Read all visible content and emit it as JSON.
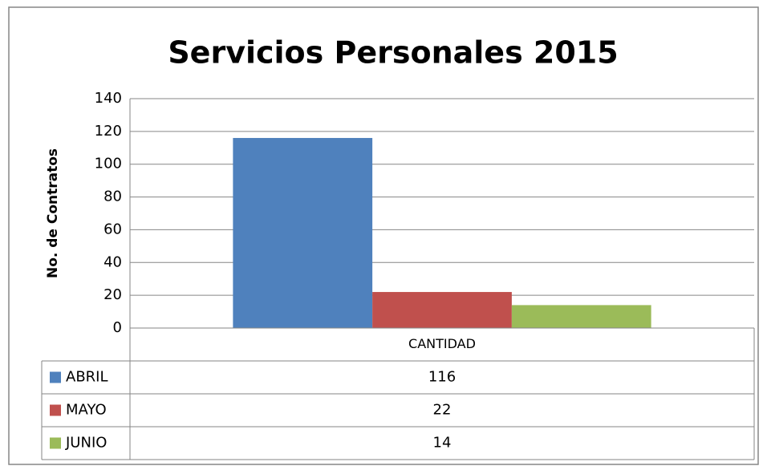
{
  "chart_data": {
    "type": "bar",
    "title": "Servicios Personales 2015",
    "ylabel": "No. de Contratos",
    "categories": [
      "CANTIDAD"
    ],
    "series": [
      {
        "name": "ABRIL",
        "color": "#4f81bd",
        "values": [
          116
        ]
      },
      {
        "name": "MAYO",
        "color": "#c0504d",
        "values": [
          22
        ]
      },
      {
        "name": "JUNIO",
        "color": "#9bbb59",
        "values": [
          14
        ]
      }
    ],
    "ylim": [
      0,
      140
    ],
    "yticks": [
      0,
      20,
      40,
      60,
      80,
      100,
      120,
      140
    ],
    "grid": true,
    "data_table": true
  }
}
